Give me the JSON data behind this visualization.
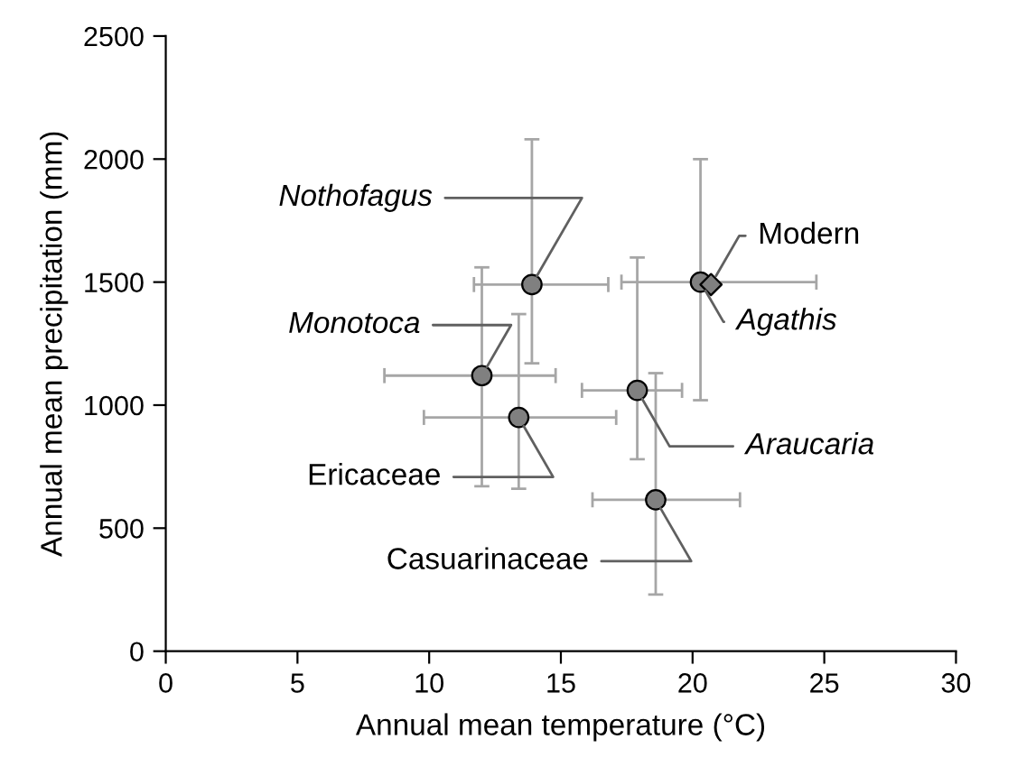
{
  "chart_data": {
    "type": "scatter",
    "xlabel": "Annual mean temperature (°C)",
    "ylabel": "Annual mean precipitation (mm)",
    "xlim": [
      0,
      30
    ],
    "xticks": [
      0,
      5,
      10,
      15,
      20,
      25,
      30
    ],
    "ylim": [
      0,
      2500
    ],
    "yticks": [
      0,
      500,
      1000,
      1500,
      2000,
      2500
    ],
    "grid": false,
    "legend": false,
    "series": [
      {
        "color": "#808080",
        "marker": "circle",
        "x": [
          13.9,
          20.3,
          12.0,
          13.4,
          17.9,
          18.6
        ],
        "values": [
          1490,
          1500,
          1120,
          950,
          1060,
          615
        ],
        "xerrors": [
          [
            11.7,
            16.8
          ],
          [
            17.3,
            24.7
          ],
          [
            8.3,
            14.8
          ],
          [
            9.8,
            17.1
          ],
          [
            15.8,
            19.6
          ],
          [
            16.2,
            21.8
          ]
        ],
        "errors": [
          [
            1170,
            2080
          ],
          [
            1020,
            2000
          ],
          [
            670,
            1560
          ],
          [
            660,
            1370
          ],
          [
            780,
            1600
          ],
          [
            230,
            1130
          ]
        ]
      },
      {
        "color": "#808080",
        "marker": "diamond",
        "x": [
          20.7
        ],
        "values": [
          1490
        ]
      }
    ],
    "annotations": [
      {
        "text": "Nothofagus",
        "x": 13.9,
        "y": 1490
      },
      {
        "text": "Agathis",
        "x": 20.3,
        "y": 1500
      },
      {
        "text": "Modern",
        "x": 20.7,
        "y": 1490
      },
      {
        "text": "Monotoca",
        "x": 12.0,
        "y": 1120
      },
      {
        "text": "Ericaceae",
        "x": 13.4,
        "y": 950
      },
      {
        "text": "Araucaria",
        "x": 17.9,
        "y": 1060
      },
      {
        "text": "Casuarinaceae",
        "x": 18.6,
        "y": 615
      }
    ]
  }
}
